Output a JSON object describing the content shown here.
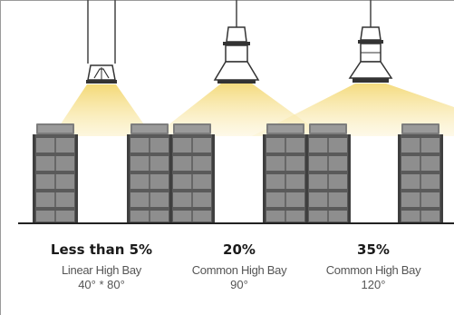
{
  "colors": {
    "background": "#ffffff",
    "beam_warm": "#f6e08a",
    "beam_light": "#fbf1c6",
    "shelf_dark": "#4a4a4a",
    "shelf_light": "#8a8a8a",
    "floor": "#222222",
    "text_primary": "#1a1a1a",
    "text_secondary": "#555555"
  },
  "fixtures": [
    {
      "id": "linear",
      "icon": "linear-high-bay-icon",
      "percentage": "Less than 5%",
      "name": "Linear High Bay",
      "angle": "40° * 80°"
    },
    {
      "id": "common90",
      "icon": "ufo-high-bay-icon",
      "percentage": "20%",
      "name": "Common High Bay",
      "angle": "90°"
    },
    {
      "id": "common120",
      "icon": "bell-high-bay-icon",
      "percentage": "35%",
      "name": "Common High Bay",
      "angle": "120°"
    }
  ]
}
